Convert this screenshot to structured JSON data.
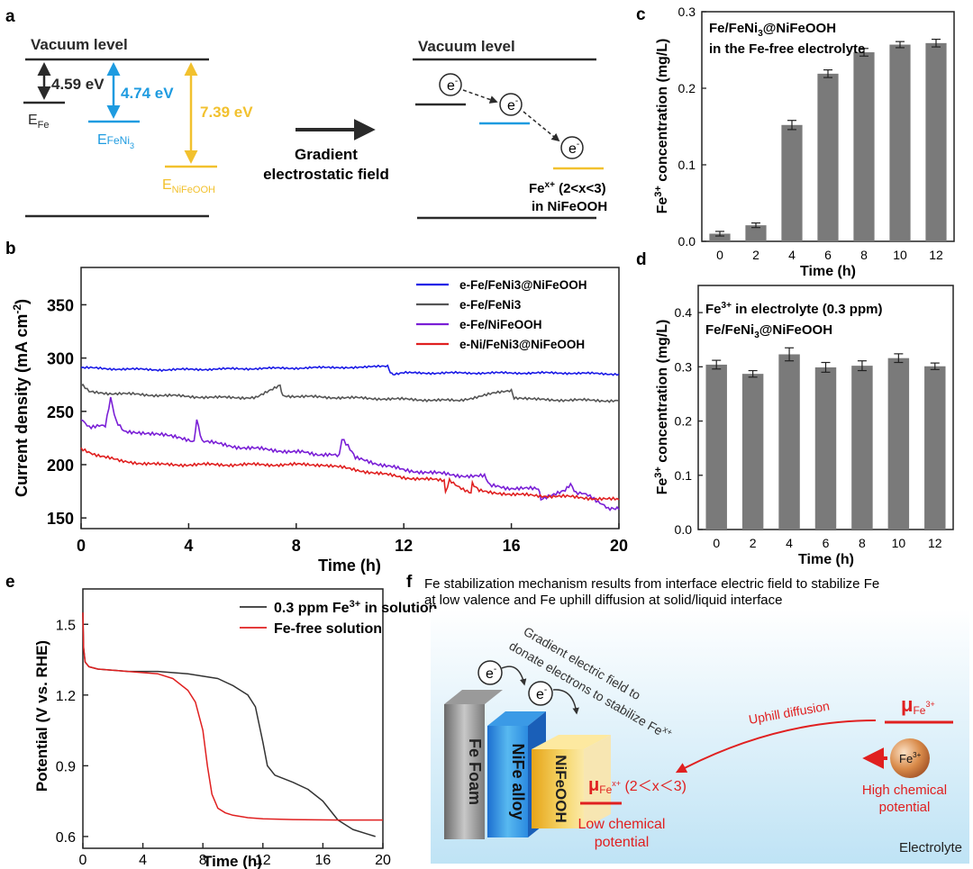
{
  "panel_labels": {
    "a": "a",
    "b": "b",
    "c": "c",
    "d": "d",
    "e": "e",
    "f": "f"
  },
  "colors": {
    "black": "#2a2a2a",
    "blue": "#1e9be0",
    "gold": "#f2c12e",
    "red": "#e02020",
    "purple": "#7a1fd6",
    "bar": "#7a7a7a",
    "navy": "#1a1ae6",
    "gray_line": "#555555"
  },
  "panel_a": {
    "left_vacuum": "Vacuum level",
    "right_vacuum": "Vacuum level",
    "e_fe_value": "4.59 eV",
    "e_fefeni3_value": "4.74 eV",
    "e_nifeooh_value": "7.39 eV",
    "e_fe_label": {
      "main": "E",
      "sub": "Fe"
    },
    "e_feni3_label": {
      "main": "E",
      "sub": "FeNi",
      "sub2": "3"
    },
    "e_nifeooh_label": {
      "main": "E",
      "sub": "NiFeOOH"
    },
    "arrow_caption_1": "Gradient",
    "arrow_caption_2": "electrostatic field",
    "electron": "e",
    "electron_sup": "-",
    "fe_label_1": "Fe",
    "fe_label_sup": "x+",
    "fe_label_2": " (2<x<3)",
    "fe_label_3": "in NiFeOOH"
  },
  "chart_data": [
    {
      "id": "b",
      "type": "line",
      "title": "",
      "xlabel": "Time (h)",
      "ylabel_main": "Current density (mA cm",
      "ylabel_sup": "-2",
      "ylabel_end": ")",
      "xlim": [
        0,
        20
      ],
      "ylim": [
        140,
        385
      ],
      "xticks": [
        "0",
        "4",
        "8",
        "12",
        "16",
        "20"
      ],
      "yticks": [
        "150",
        "200",
        "250",
        "300",
        "350"
      ],
      "legend": [
        "e-Fe/FeNi3@NiFeOOH",
        "e-Fe/FeNi3",
        "e-Fe/NiFeOOH",
        "e-Ni/FeNi3@NiFeOOH"
      ],
      "series": [
        {
          "name": "e-Fe/FeNi3@NiFeOOH",
          "x": [
            0,
            1,
            3,
            6,
            9,
            11.4,
            11.5,
            11.6,
            12,
            15,
            18,
            20
          ],
          "y": [
            291,
            290,
            289,
            290,
            291,
            292,
            287,
            284,
            286,
            286,
            286,
            285
          ]
        },
        {
          "name": "e-Fe/FeNi3",
          "x": [
            0,
            0.3,
            1,
            3,
            5,
            6.5,
            7.4,
            7.5,
            8,
            11,
            14,
            16,
            16.1,
            17,
            20
          ],
          "y": [
            275,
            269,
            267,
            265,
            263,
            263,
            274,
            265,
            264,
            262,
            260,
            270,
            262,
            261,
            260
          ]
        },
        {
          "name": "e-Fe/NiFeOOH",
          "x": [
            0,
            0.3,
            0.9,
            1.1,
            1.3,
            1.6,
            3,
            4.2,
            4.3,
            4.5,
            6,
            8,
            9.6,
            9.7,
            10,
            10.2,
            12,
            14,
            15,
            15.2,
            16,
            17,
            17.1,
            18,
            18.2,
            18.4,
            19,
            19.6,
            20
          ],
          "y": [
            242,
            236,
            236,
            262,
            240,
            232,
            228,
            222,
            242,
            222,
            216,
            212,
            208,
            225,
            214,
            206,
            195,
            190,
            189,
            180,
            178,
            177,
            168,
            176,
            182,
            174,
            170,
            158,
            158
          ]
        },
        {
          "name": "e-Ni/FeNi3@NiFeOOH",
          "x": [
            0,
            0.5,
            1.5,
            3,
            6,
            9,
            10,
            12,
            13.5,
            13.55,
            13.7,
            14.5,
            14.55,
            14.8,
            16,
            18,
            20
          ],
          "y": [
            215,
            210,
            203,
            200,
            200,
            200,
            196,
            188,
            185,
            173,
            185,
            173,
            183,
            176,
            172,
            170,
            167
          ]
        }
      ]
    },
    {
      "id": "c",
      "type": "bar",
      "text1": "Fe/FeNi",
      "text1_sub": "3",
      "text1_end": "@NiFeOOH",
      "text2": "in the Fe-free electrolyte",
      "xlabel": "Time (h)",
      "ylabel_main": "Fe",
      "ylabel_sup": "3+",
      "ylabel_end": " concentration (mg/L)",
      "categories": [
        "0",
        "2",
        "4",
        "6",
        "8",
        "10",
        "12"
      ],
      "values": [
        0.01,
        0.021,
        0.152,
        0.219,
        0.247,
        0.257,
        0.259
      ],
      "errors": [
        0.003,
        0.003,
        0.006,
        0.005,
        0.005,
        0.004,
        0.005
      ],
      "ylim": [
        0,
        0.3
      ],
      "yticks": [
        "0.0",
        "0.1",
        "0.2",
        "0.3"
      ]
    },
    {
      "id": "d",
      "type": "bar",
      "text1": "Fe",
      "text1_sup": "3+",
      "text1_end": " in electrolyte (0.3 ppm)",
      "text2": "Fe/FeNi",
      "text2_sub": "3",
      "text2_end": "@NiFeOOH",
      "xlabel": "Time (h)",
      "ylabel_main": "Fe",
      "ylabel_sup": "3+",
      "ylabel_end": " concentration (mg/L)",
      "categories": [
        "0",
        "2",
        "4",
        "6",
        "8",
        "10",
        "12"
      ],
      "values": [
        0.304,
        0.287,
        0.323,
        0.299,
        0.302,
        0.316,
        0.301
      ],
      "errors": [
        0.008,
        0.006,
        0.012,
        0.009,
        0.009,
        0.008,
        0.006
      ],
      "ylim": [
        0,
        0.45
      ],
      "yticks": [
        "0.0",
        "0.1",
        "0.2",
        "0.3",
        "0.4"
      ]
    },
    {
      "id": "e",
      "type": "line",
      "xlabel": "Time (h)",
      "ylabel": "Potential (V vs. RHE)",
      "xlim": [
        0,
        20
      ],
      "ylim": [
        0.55,
        1.65
      ],
      "xticks": [
        "0",
        "4",
        "8",
        "12",
        "16",
        "20"
      ],
      "yticks": [
        "0.6",
        "0.9",
        "1.2",
        "1.5"
      ],
      "legend_1": "0.3 ppm Fe",
      "legend_1_sup": "3+",
      "legend_1_end": " in solution",
      "legend_2": "Fe-free solution",
      "series": [
        {
          "name": "0.3 ppm Fe3+ in solution",
          "x": [
            0,
            0.05,
            0.15,
            0.4,
            1,
            3,
            5,
            7,
            9,
            10,
            11,
            11.5,
            12,
            12.3,
            12.8,
            14,
            15,
            16,
            17,
            18,
            19,
            19.5
          ],
          "y": [
            1.55,
            1.4,
            1.34,
            1.32,
            1.31,
            1.3,
            1.3,
            1.29,
            1.27,
            1.24,
            1.2,
            1.15,
            1.0,
            0.9,
            0.86,
            0.83,
            0.8,
            0.75,
            0.67,
            0.63,
            0.61,
            0.6
          ]
        },
        {
          "name": "Fe-free solution",
          "x": [
            0,
            0.05,
            0.15,
            0.4,
            1,
            3,
            5,
            6,
            7,
            7.5,
            8,
            8.3,
            8.6,
            9,
            9.5,
            10,
            11,
            12,
            14,
            17,
            20
          ],
          "y": [
            1.55,
            1.4,
            1.34,
            1.32,
            1.31,
            1.3,
            1.29,
            1.27,
            1.22,
            1.17,
            1.05,
            0.9,
            0.78,
            0.72,
            0.7,
            0.69,
            0.68,
            0.675,
            0.672,
            0.67,
            0.67
          ]
        }
      ]
    }
  ],
  "panel_f": {
    "title_1": "Fe stabilization mechanism results from interface electric field to stabilize Fe",
    "title_2": "at low valence and Fe uphill diffusion at solid/liquid interface",
    "gradient_text_1": "Gradient electric field to",
    "gradient_text_2": "donate electrons to stabilize Fe",
    "gradient_text_sup": "x+",
    "block_fe_foam": "Fe Foam",
    "block_nife_alloy": "NiFe alloy",
    "block_nifeooh": "NiFeOOH",
    "electron": "e",
    "electron_sup": "-",
    "mu": "μ",
    "mu_low_sub": "Fe",
    "mu_low_sup": "x+",
    "mu_low_end": " (2＜x＜3)",
    "mu_high_sub": "Fe",
    "mu_high_sup": "3+",
    "uphill": "Uphill diffusion",
    "low_1": "Low chemical",
    "low_2": "potential",
    "high_1": "High chemical",
    "high_2": "potential",
    "ion": "Fe",
    "ion_sup": "3+",
    "electrolyte": "Electrolyte"
  }
}
